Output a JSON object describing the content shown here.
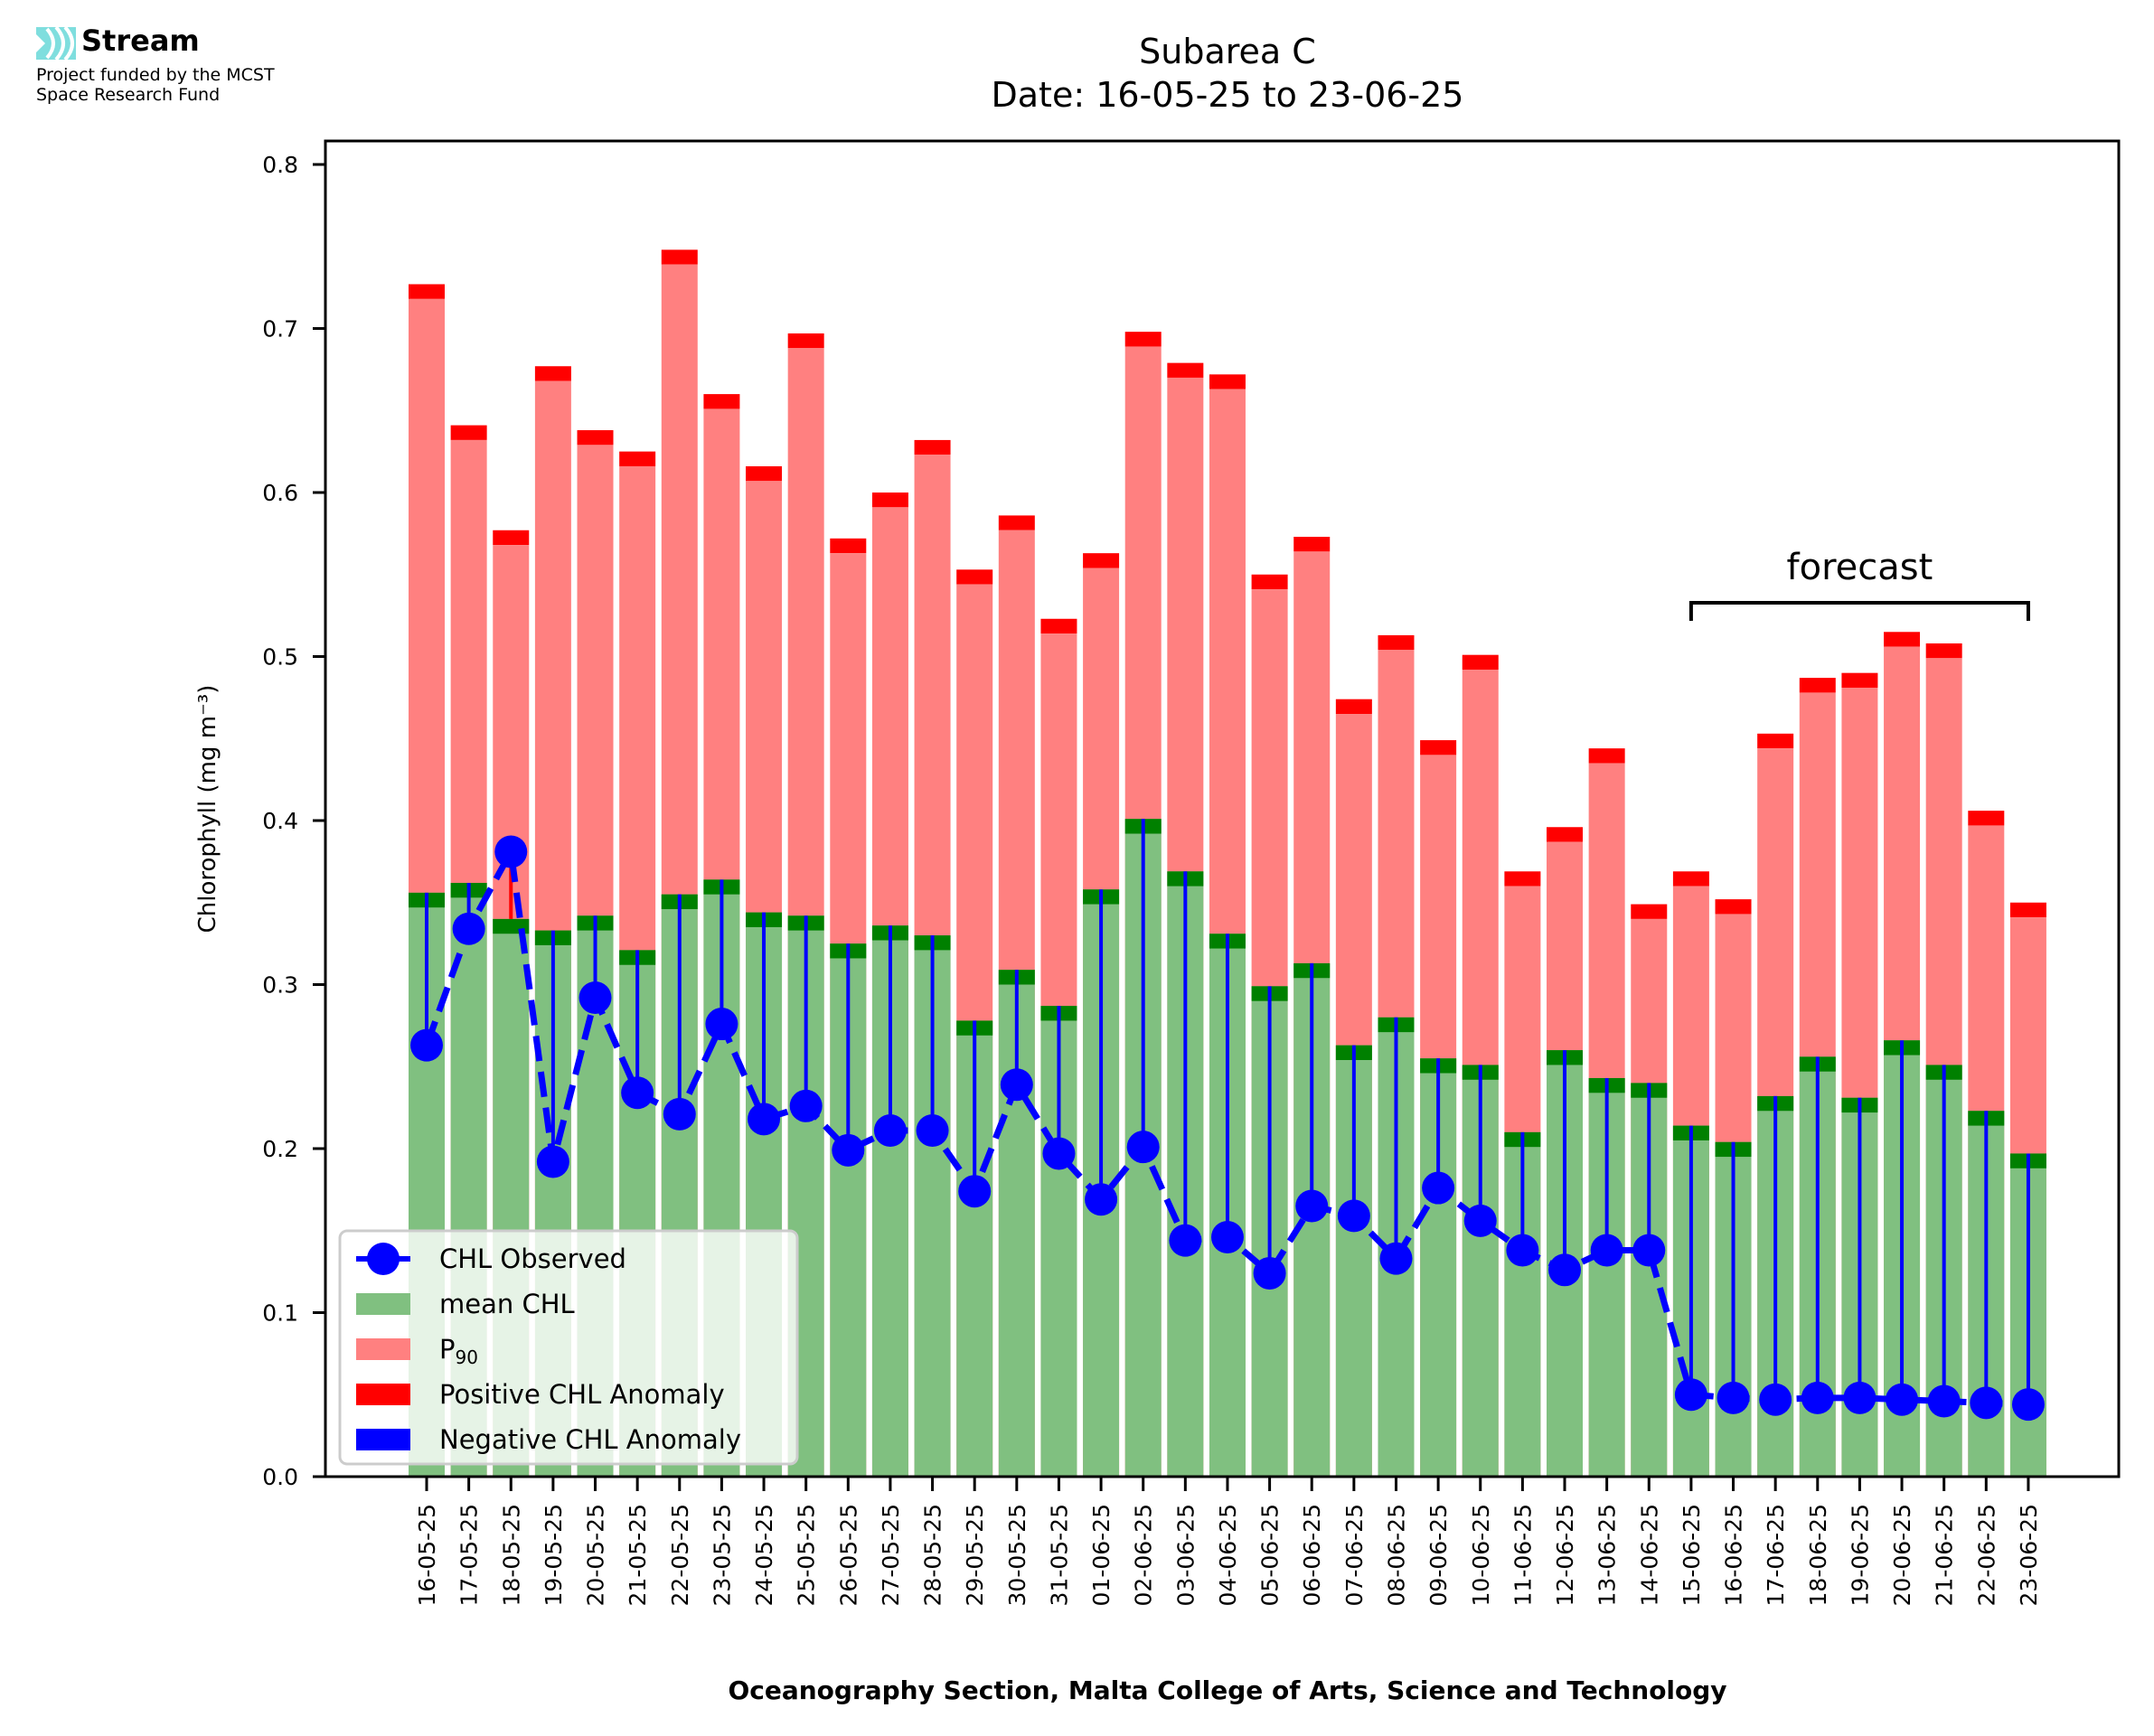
{
  "logo": {
    "name": "Stream",
    "funding_line1": "Project funded by the MCST",
    "funding_line2": "Space Research Fund",
    "accent": "#7fdede"
  },
  "chart_data": {
    "type": "bar",
    "title_line1": "Subarea C",
    "title_line2": "Date: 16-05-25 to 23-06-25",
    "xlabel": "Oceanography Section, Malta College of Arts, Science and Technology",
    "ylabel": "Chlorophyll (mg m⁻³)",
    "ylim": [
      0.0,
      0.81
    ],
    "yticks": [
      "0.0",
      "0.1",
      "0.2",
      "0.3",
      "0.4",
      "0.5",
      "0.6",
      "0.7",
      "0.8"
    ],
    "ytick_values": [
      0.0,
      0.1,
      0.2,
      0.3,
      0.4,
      0.5,
      0.6,
      0.7,
      0.8
    ],
    "grid": false,
    "legend_position": "lower-left",
    "legend": [
      {
        "label": "CHL Observed",
        "kind": "line-marker",
        "color": "#0000ff"
      },
      {
        "label": "mean CHL",
        "kind": "patch",
        "color": "#80c080"
      },
      {
        "label": "P",
        "sub": "90",
        "kind": "patch",
        "color": "#ff8080"
      },
      {
        "label": "Positive CHL Anomaly",
        "kind": "patch",
        "color": "#ff0000"
      },
      {
        "label": "Negative CHL Anomaly",
        "kind": "patch",
        "color": "#0000ff"
      }
    ],
    "annotation": {
      "text": "forecast",
      "from": "15-06-25",
      "to": "23-06-25"
    },
    "colors": {
      "mean": "#80c080",
      "mean_edge": "#008000",
      "p90": "#ff8080",
      "p90_edge": "#ff0000",
      "observed": "#0000ff",
      "positive_anomaly": "#ff0000",
      "negative_anomaly": "#0000ff"
    },
    "categories": [
      "16-05-25",
      "17-05-25",
      "18-05-25",
      "19-05-25",
      "20-05-25",
      "21-05-25",
      "22-05-25",
      "23-05-25",
      "24-05-25",
      "25-05-25",
      "26-05-25",
      "27-05-25",
      "28-05-25",
      "29-05-25",
      "30-05-25",
      "31-05-25",
      "01-06-25",
      "02-06-25",
      "03-06-25",
      "04-06-25",
      "05-06-25",
      "06-06-25",
      "07-06-25",
      "08-06-25",
      "09-06-25",
      "10-06-25",
      "11-06-25",
      "12-06-25",
      "13-06-25",
      "14-06-25",
      "15-06-25",
      "16-06-25",
      "17-06-25",
      "18-06-25",
      "19-06-25",
      "20-06-25",
      "21-06-25",
      "22-06-25",
      "23-06-25"
    ],
    "series": [
      {
        "name": "P90",
        "values": [
          0.718,
          0.632,
          0.568,
          0.668,
          0.629,
          0.616,
          0.739,
          0.651,
          0.607,
          0.688,
          0.563,
          0.591,
          0.623,
          0.544,
          0.577,
          0.514,
          0.554,
          0.689,
          0.67,
          0.663,
          0.541,
          0.564,
          0.465,
          0.504,
          0.44,
          0.492,
          0.36,
          0.387,
          0.435,
          0.34,
          0.36,
          0.343,
          0.444,
          0.478,
          0.481,
          0.506,
          0.499,
          0.397,
          0.341
        ]
      },
      {
        "name": "mean CHL",
        "values": [
          0.356,
          0.362,
          0.34,
          0.333,
          0.342,
          0.321,
          0.355,
          0.364,
          0.344,
          0.342,
          0.325,
          0.336,
          0.33,
          0.278,
          0.309,
          0.287,
          0.358,
          0.401,
          0.369,
          0.331,
          0.299,
          0.313,
          0.263,
          0.28,
          0.255,
          0.251,
          0.21,
          0.26,
          0.243,
          0.24,
          0.214,
          0.204,
          0.232,
          0.256,
          0.231,
          0.266,
          0.251,
          0.223,
          0.197
        ]
      },
      {
        "name": "CHL Observed",
        "values": [
          0.263,
          0.334,
          0.381,
          0.192,
          0.292,
          0.234,
          0.221,
          0.276,
          0.218,
          0.226,
          0.199,
          0.211,
          0.211,
          0.174,
          0.239,
          0.197,
          0.169,
          0.201,
          0.144,
          0.146,
          0.124,
          0.165,
          0.159,
          0.133,
          0.176,
          0.156,
          0.138,
          0.126,
          0.138,
          0.138,
          0.05,
          0.048,
          0.047,
          0.048,
          0.048,
          0.047,
          0.046,
          0.045,
          0.044
        ]
      }
    ]
  }
}
